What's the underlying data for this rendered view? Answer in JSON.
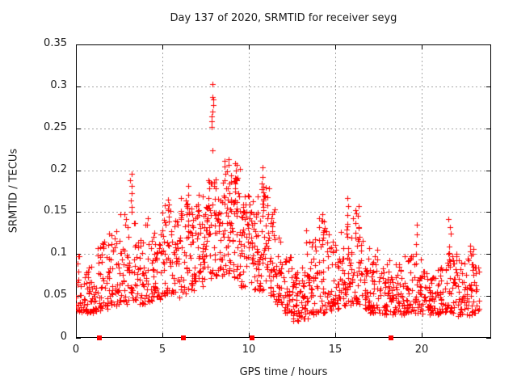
{
  "chart_data": {
    "type": "scatter",
    "title": "Day 137 of 2020, SRMTID for receiver seyg",
    "xlabel": "GPS time / hours",
    "ylabel": "SRMTID / TECUs",
    "xlim": [
      0,
      24
    ],
    "ylim": [
      0,
      0.35
    ],
    "xticks": [
      0,
      5,
      10,
      15,
      20
    ],
    "yticks": [
      0,
      0.05,
      0.1,
      0.15,
      0.2,
      0.25,
      0.3,
      0.35
    ],
    "xtick_labels": [
      "0",
      "5",
      "10",
      "15",
      "20"
    ],
    "ytick_labels": [
      "0",
      "0.05",
      "0.1",
      "0.15",
      "0.2",
      "0.25",
      "0.3",
      "0.35"
    ],
    "grid": true,
    "legend": "none",
    "marker": "plus",
    "marker_color": "#ff0000",
    "grid_color": "#a6a6a6",
    "peak_point": {
      "x": 7.9,
      "y": 0.303
    },
    "axis_markers": {
      "shape": "filled-square",
      "color": "#ff0000",
      "y": 0,
      "x": [
        1.36,
        6.21,
        10.18,
        18.21
      ]
    },
    "density_bins": [
      [
        0.0,
        0.5,
        32,
        0.03,
        0.098
      ],
      [
        0.5,
        1.0,
        32,
        0.03,
        0.09
      ],
      [
        1.0,
        1.5,
        32,
        0.032,
        0.108
      ],
      [
        1.5,
        2.0,
        32,
        0.035,
        0.132
      ],
      [
        2.0,
        2.5,
        32,
        0.038,
        0.128
      ],
      [
        2.5,
        3.0,
        32,
        0.04,
        0.148
      ],
      [
        3.0,
        3.5,
        30,
        0.045,
        0.14
      ],
      [
        3.5,
        4.0,
        30,
        0.04,
        0.118
      ],
      [
        4.0,
        4.5,
        30,
        0.042,
        0.145
      ],
      [
        4.5,
        5.0,
        32,
        0.045,
        0.132
      ],
      [
        5.0,
        5.5,
        34,
        0.05,
        0.158
      ],
      [
        5.5,
        6.0,
        32,
        0.048,
        0.145
      ],
      [
        6.0,
        6.5,
        34,
        0.05,
        0.17
      ],
      [
        6.5,
        7.0,
        36,
        0.055,
        0.16
      ],
      [
        7.0,
        7.5,
        40,
        0.06,
        0.175
      ],
      [
        7.5,
        8.0,
        40,
        0.065,
        0.2
      ],
      [
        8.0,
        8.5,
        40,
        0.07,
        0.19
      ],
      [
        8.5,
        9.0,
        42,
        0.075,
        0.215
      ],
      [
        9.0,
        9.5,
        40,
        0.07,
        0.212
      ],
      [
        9.5,
        10.0,
        38,
        0.06,
        0.17
      ],
      [
        10.0,
        10.5,
        38,
        0.055,
        0.165
      ],
      [
        10.5,
        11.0,
        38,
        0.055,
        0.185
      ],
      [
        11.0,
        11.5,
        36,
        0.05,
        0.165
      ],
      [
        11.5,
        12.0,
        32,
        0.04,
        0.12
      ],
      [
        12.0,
        12.5,
        34,
        0.03,
        0.1
      ],
      [
        12.5,
        13.0,
        36,
        0.02,
        0.082
      ],
      [
        13.0,
        13.5,
        36,
        0.022,
        0.09
      ],
      [
        13.5,
        14.0,
        34,
        0.028,
        0.118
      ],
      [
        14.0,
        14.5,
        34,
        0.03,
        0.148
      ],
      [
        14.5,
        15.0,
        34,
        0.032,
        0.128
      ],
      [
        15.0,
        15.5,
        34,
        0.035,
        0.138
      ],
      [
        15.5,
        16.0,
        34,
        0.038,
        0.14
      ],
      [
        16.0,
        16.5,
        34,
        0.04,
        0.155
      ],
      [
        16.5,
        17.0,
        32,
        0.035,
        0.118
      ],
      [
        17.0,
        17.5,
        32,
        0.03,
        0.11
      ],
      [
        17.5,
        18.0,
        32,
        0.028,
        0.09
      ],
      [
        18.0,
        18.5,
        32,
        0.028,
        0.095
      ],
      [
        18.5,
        19.0,
        32,
        0.028,
        0.09
      ],
      [
        19.0,
        19.5,
        32,
        0.03,
        0.1
      ],
      [
        19.5,
        20.0,
        32,
        0.03,
        0.102
      ],
      [
        20.0,
        20.5,
        32,
        0.028,
        0.09
      ],
      [
        20.5,
        21.0,
        32,
        0.028,
        0.085
      ],
      [
        21.0,
        21.5,
        32,
        0.03,
        0.092
      ],
      [
        21.5,
        22.0,
        32,
        0.03,
        0.1
      ],
      [
        22.0,
        22.5,
        32,
        0.026,
        0.095
      ],
      [
        22.5,
        23.0,
        30,
        0.025,
        0.108
      ],
      [
        23.0,
        23.3,
        16,
        0.03,
        0.085
      ]
    ],
    "spike_columns": [
      [
        3.18,
        [
          0.15,
          0.156,
          0.164,
          0.173,
          0.181,
          0.188,
          0.196
        ]
      ],
      [
        5.35,
        [
          0.145,
          0.152,
          0.159,
          0.165
        ]
      ],
      [
        6.48,
        [
          0.15,
          0.16,
          0.171,
          0.181
        ]
      ],
      [
        7.9,
        [
          0.224,
          0.252,
          0.258,
          0.264,
          0.27,
          0.278,
          0.284,
          0.287,
          0.303
        ]
      ],
      [
        8.65,
        [
          0.168,
          0.178,
          0.188,
          0.196,
          0.204,
          0.211
        ]
      ],
      [
        9.2,
        [
          0.162,
          0.175,
          0.188,
          0.2,
          0.208
        ]
      ],
      [
        10.85,
        [
          0.152,
          0.16,
          0.17,
          0.18,
          0.192,
          0.203
        ]
      ],
      [
        11.1,
        [
          0.148,
          0.158,
          0.168,
          0.178
        ]
      ],
      [
        13.35,
        [
          0.1,
          0.114,
          0.128
        ]
      ],
      [
        14.25,
        [
          0.112,
          0.126,
          0.14,
          0.148
        ]
      ],
      [
        15.7,
        [
          0.107,
          0.121,
          0.133,
          0.147,
          0.157,
          0.167
        ]
      ],
      [
        16.35,
        [
          0.118,
          0.132,
          0.146,
          0.157
        ]
      ],
      [
        19.65,
        [
          0.1,
          0.112,
          0.123,
          0.135
        ]
      ],
      [
        21.6,
        [
          0.094,
          0.101,
          0.109,
          0.124,
          0.132,
          0.142
        ]
      ],
      [
        22.8,
        [
          0.088,
          0.098,
          0.11
        ]
      ]
    ],
    "render_seed": 137
  }
}
